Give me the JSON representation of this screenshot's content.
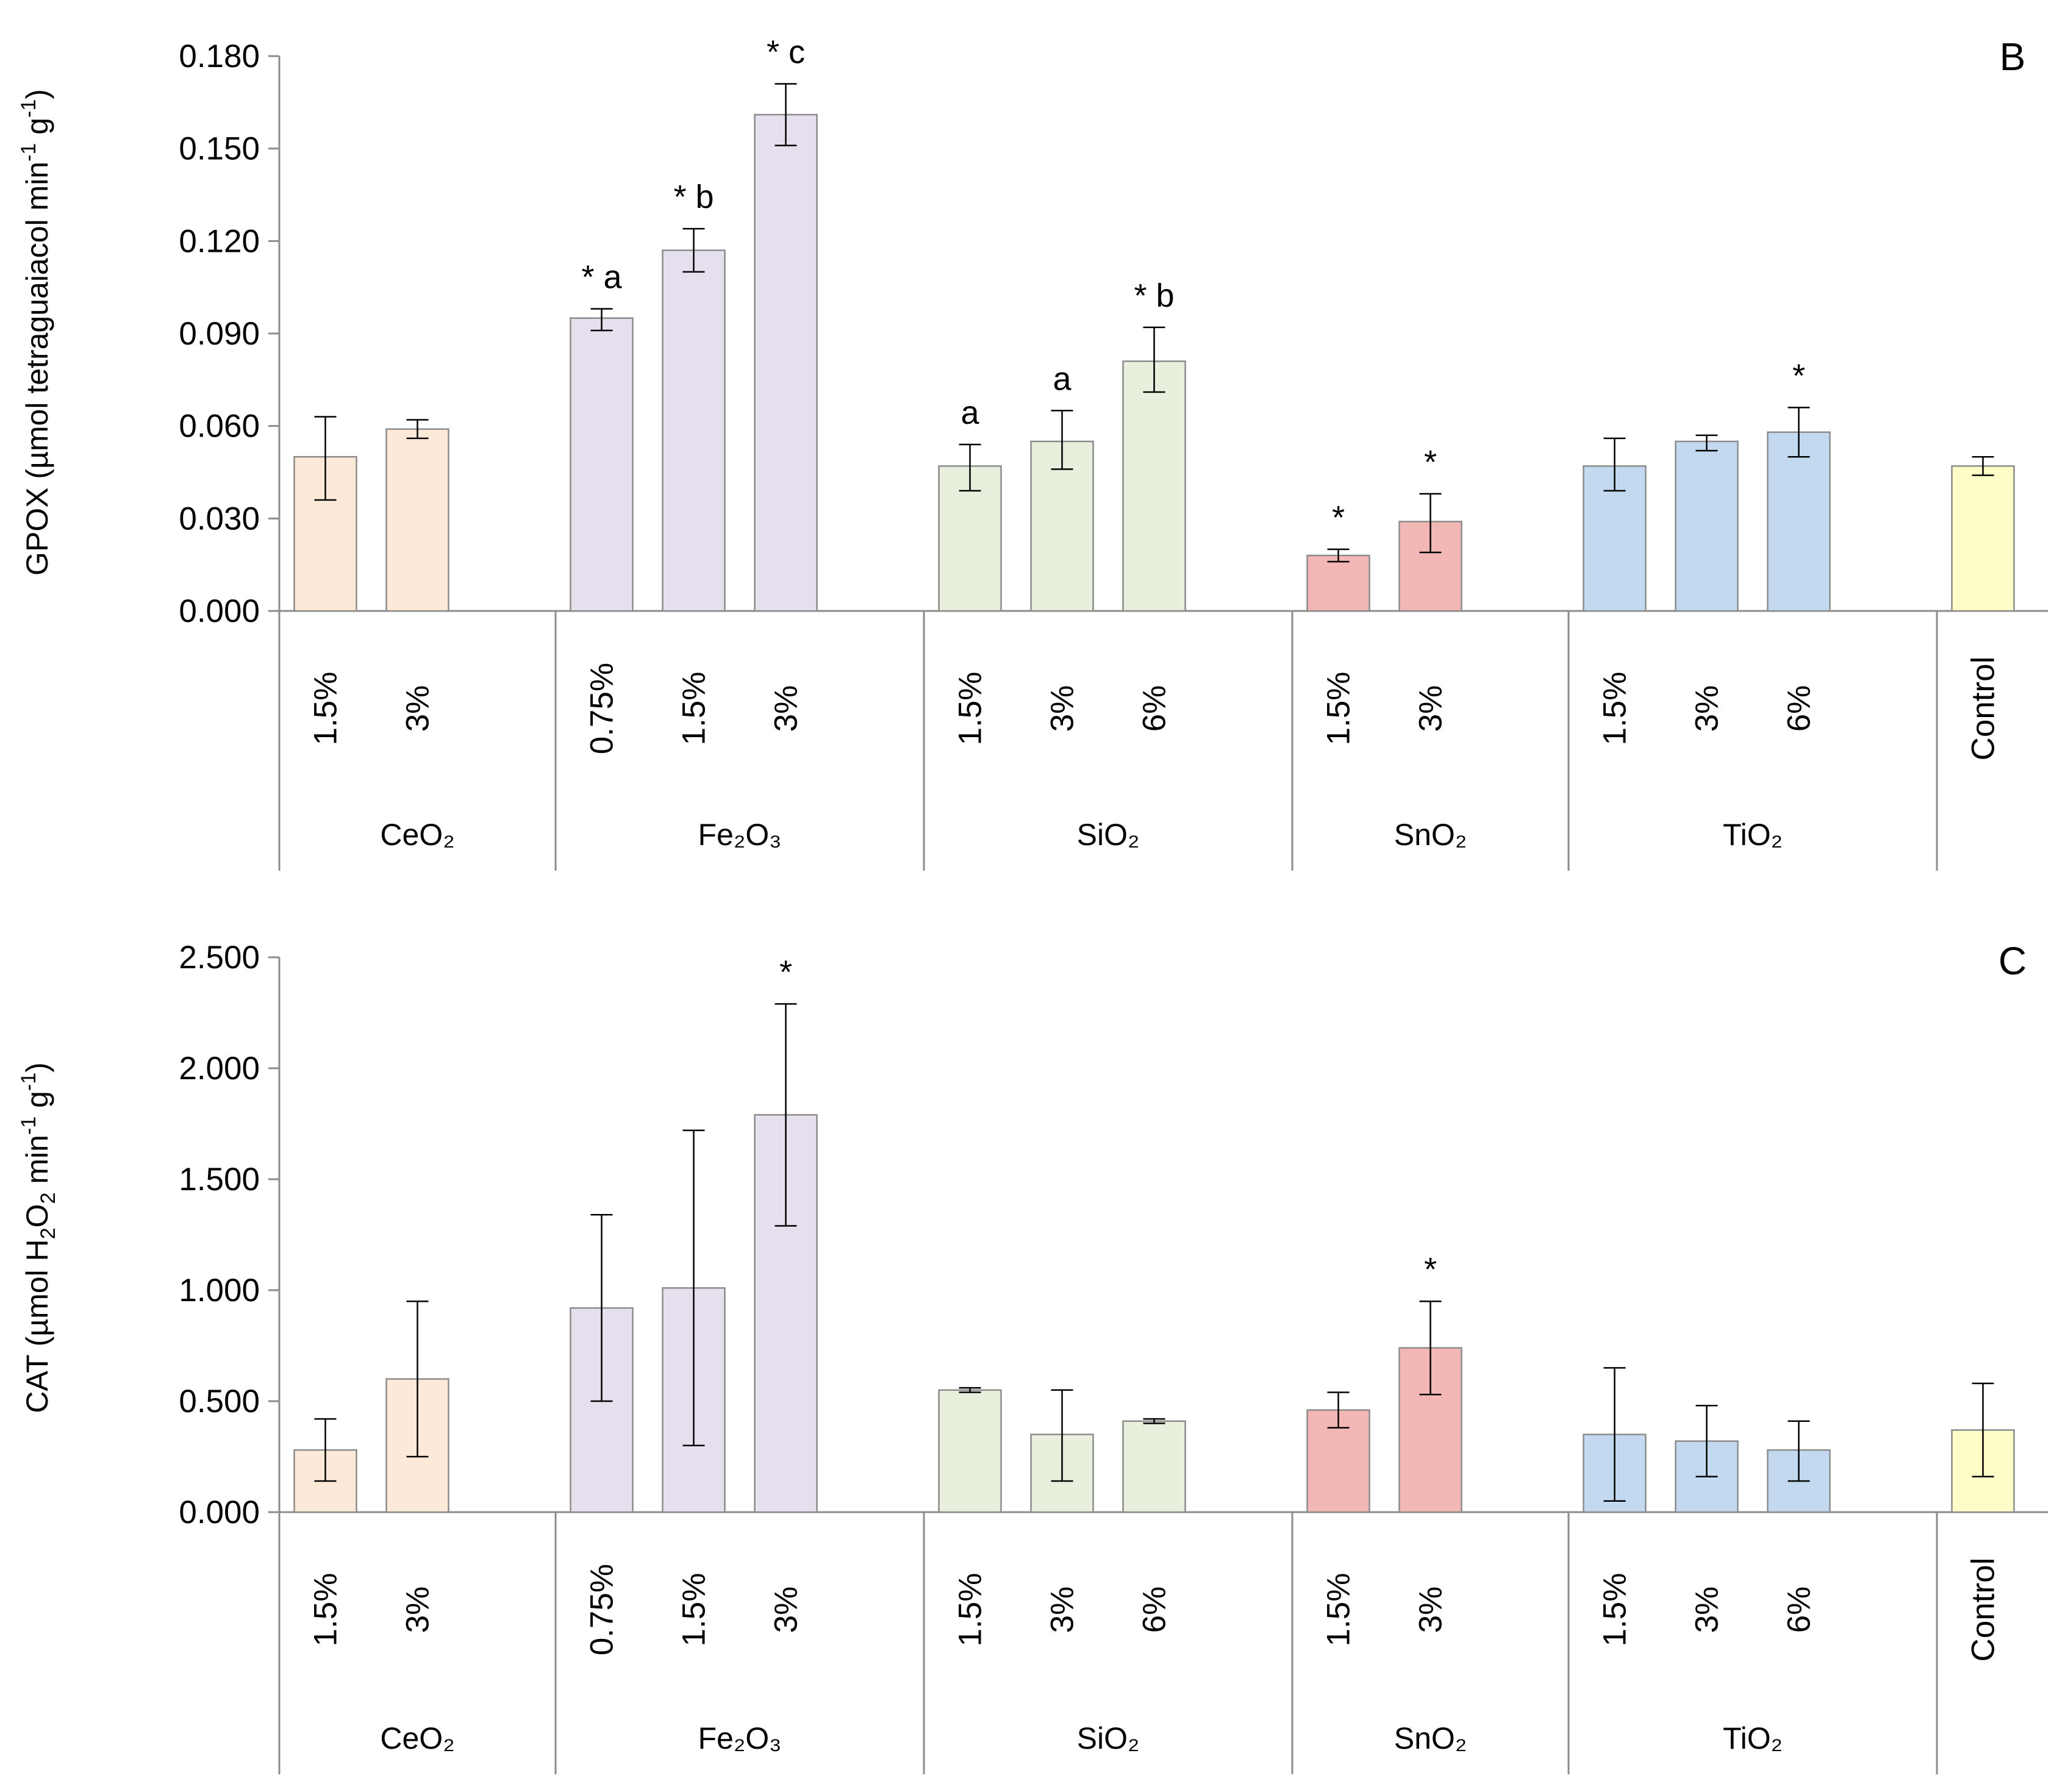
{
  "chart_data": [
    {
      "type": "bar",
      "panel": "B",
      "title": "",
      "ylabel": "GPOX (µmol tetraguaiacol min⁻¹ g⁻¹)",
      "ylabel_parts": {
        "main": "GPOX (µmol tetraguaiacol min",
        "sup1": "-1",
        "mid": " g",
        "sup2": "-1",
        "end": ")"
      },
      "ylim": [
        0,
        0.18
      ],
      "yticks": [
        "0.000",
        "0.030",
        "0.060",
        "0.090",
        "0.120",
        "0.150",
        "0.180"
      ],
      "groups": [
        {
          "name": "CeO₂",
          "color": "#FCE9D8",
          "bars": [
            {
              "label": "1.5%",
              "value": 0.05,
              "err_low": 0.036,
              "err_high": 0.063,
              "annot": ""
            },
            {
              "label": "3%",
              "value": 0.059,
              "err_low": 0.056,
              "err_high": 0.062,
              "annot": ""
            }
          ]
        },
        {
          "name": "Fe₂O₃",
          "color": "#E6E0EE",
          "bars": [
            {
              "label": "0.75%",
              "value": 0.095,
              "err_low": 0.091,
              "err_high": 0.098,
              "annot": "* a"
            },
            {
              "label": "1.5%",
              "value": 0.117,
              "err_low": 0.11,
              "err_high": 0.124,
              "annot": "* b"
            },
            {
              "label": "3%",
              "value": 0.161,
              "err_low": 0.151,
              "err_high": 0.171,
              "annot": "* c"
            }
          ]
        },
        {
          "name": "SiO₂",
          "color": "#E8EFDC",
          "bars": [
            {
              "label": "1.5%",
              "value": 0.047,
              "err_low": 0.039,
              "err_high": 0.054,
              "annot": "a"
            },
            {
              "label": "3%",
              "value": 0.055,
              "err_low": 0.046,
              "err_high": 0.065,
              "annot": "a"
            },
            {
              "label": "6%",
              "value": 0.081,
              "err_low": 0.071,
              "err_high": 0.092,
              "annot": "* b"
            }
          ]
        },
        {
          "name": "SnO₂",
          "color": "#F3B8B5",
          "bars": [
            {
              "label": "1.5%",
              "value": 0.018,
              "err_low": 0.016,
              "err_high": 0.02,
              "annot": "*"
            },
            {
              "label": "3%",
              "value": 0.029,
              "err_low": 0.019,
              "err_high": 0.038,
              "annot": "*"
            }
          ]
        },
        {
          "name": "TiO₂",
          "color": "#C3D9F0",
          "bars": [
            {
              "label": "1.5%",
              "value": 0.047,
              "err_low": 0.039,
              "err_high": 0.056,
              "annot": ""
            },
            {
              "label": "3%",
              "value": 0.055,
              "err_low": 0.052,
              "err_high": 0.057,
              "annot": ""
            },
            {
              "label": "6%",
              "value": 0.058,
              "err_low": 0.05,
              "err_high": 0.066,
              "annot": "*"
            }
          ]
        },
        {
          "name": "",
          "color": "#FDFDC8",
          "bars": [
            {
              "label": "Control",
              "value": 0.047,
              "err_low": 0.044,
              "err_high": 0.05,
              "annot": ""
            }
          ]
        }
      ]
    },
    {
      "type": "bar",
      "panel": "C",
      "title": "",
      "ylabel": "CAT (µmol H₂O₂ min⁻¹ g⁻¹)",
      "ylabel_parts": {
        "a": "CAT (µmol H",
        "sub1": "2",
        "b": "O",
        "sub2": "2",
        "c": " min",
        "sup1": "-1",
        "d": " g",
        "sup2": "-1",
        "e": ")"
      },
      "ylim": [
        0,
        2.5
      ],
      "yticks": [
        "0.000",
        "0.500",
        "1.000",
        "1.500",
        "2.000",
        "2.500"
      ],
      "groups": [
        {
          "name": "CeO₂",
          "color": "#FCE9D8",
          "bars": [
            {
              "label": "1.5%",
              "value": 0.28,
              "err_low": 0.14,
              "err_high": 0.42,
              "annot": ""
            },
            {
              "label": "3%",
              "value": 0.6,
              "err_low": 0.25,
              "err_high": 0.95,
              "annot": ""
            }
          ]
        },
        {
          "name": "Fe₂O₃",
          "color": "#E6E0EE",
          "bars": [
            {
              "label": "0.75%",
              "value": 0.92,
              "err_low": 0.5,
              "err_high": 1.34,
              "annot": ""
            },
            {
              "label": "1.5%",
              "value": 1.01,
              "err_low": 0.3,
              "err_high": 1.72,
              "annot": ""
            },
            {
              "label": "3%",
              "value": 1.79,
              "err_low": 1.29,
              "err_high": 2.29,
              "annot": "*"
            }
          ]
        },
        {
          "name": "SiO₂",
          "color": "#E8EFDC",
          "bars": [
            {
              "label": "1.5%",
              "value": 0.55,
              "err_low": 0.54,
              "err_high": 0.56,
              "annot": ""
            },
            {
              "label": "3%",
              "value": 0.35,
              "err_low": 0.14,
              "err_high": 0.55,
              "annot": ""
            },
            {
              "label": "6%",
              "value": 0.41,
              "err_low": 0.4,
              "err_high": 0.42,
              "annot": ""
            }
          ]
        },
        {
          "name": "SnO₂",
          "color": "#F3B8B5",
          "bars": [
            {
              "label": "1.5%",
              "value": 0.46,
              "err_low": 0.38,
              "err_high": 0.54,
              "annot": ""
            },
            {
              "label": "3%",
              "value": 0.74,
              "err_low": 0.53,
              "err_high": 0.95,
              "annot": "*"
            }
          ]
        },
        {
          "name": "TiO₂",
          "color": "#C3D9F0",
          "bars": [
            {
              "label": "1.5%",
              "value": 0.35,
              "err_low": 0.05,
              "err_high": 0.65,
              "annot": ""
            },
            {
              "label": "3%",
              "value": 0.32,
              "err_low": 0.16,
              "err_high": 0.48,
              "annot": ""
            },
            {
              "label": "6%",
              "value": 0.28,
              "err_low": 0.14,
              "err_high": 0.41,
              "annot": ""
            }
          ]
        },
        {
          "name": "",
          "color": "#FDFDC8",
          "bars": [
            {
              "label": "Control",
              "value": 0.37,
              "err_low": 0.16,
              "err_high": 0.58,
              "annot": ""
            }
          ]
        }
      ]
    }
  ]
}
